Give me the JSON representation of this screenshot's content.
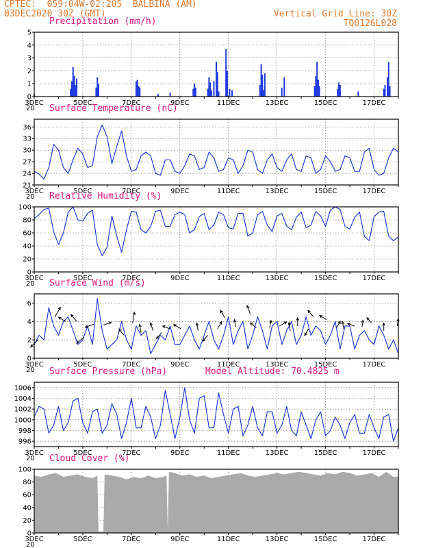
{
  "header": {
    "line1": "CPTEC:  059:04W-02:20S  BALBINA (AM)",
    "line2_left": "03DEC2020 30Z (GMT)",
    "line2_right": "Vertical Grid Line: 30Z",
    "line3_right": "TQ0126L028"
  },
  "colors": {
    "line": "#1f3adf",
    "bar": "#1f3adf",
    "cloud": "#aaaaaa",
    "title": "#e0147e",
    "header": "#e0782a",
    "grid": "#555555"
  },
  "chart_data": [
    {
      "id": "precip",
      "type": "bar",
      "title": "Precipitation (mm/h)",
      "ylim": [
        0,
        5
      ],
      "yticks": [
        0,
        1,
        2,
        3,
        4,
        5
      ],
      "x_unit": "day-of-December",
      "spikes": [
        [
          3.0,
          0.2
        ],
        [
          4.5,
          0.6
        ],
        [
          4.55,
          1.2
        ],
        [
          4.6,
          2.3
        ],
        [
          4.65,
          1.6
        ],
        [
          4.7,
          0.9
        ],
        [
          4.75,
          1.4
        ],
        [
          5.55,
          0.7
        ],
        [
          5.6,
          1.5
        ],
        [
          5.65,
          1.0
        ],
        [
          7.2,
          1.2
        ],
        [
          7.25,
          1.3
        ],
        [
          7.3,
          0.8
        ],
        [
          7.35,
          0.7
        ],
        [
          8.1,
          0.2
        ],
        [
          8.6,
          0.3
        ],
        [
          9.55,
          0.6
        ],
        [
          9.6,
          1.0
        ],
        [
          9.65,
          0.7
        ],
        [
          10.15,
          0.6
        ],
        [
          10.2,
          1.5
        ],
        [
          10.25,
          1.1
        ],
        [
          10.3,
          0.5
        ],
        [
          10.4,
          1.2
        ],
        [
          10.5,
          2.7
        ],
        [
          10.55,
          1.9
        ],
        [
          10.6,
          0.4
        ],
        [
          10.9,
          3.7
        ],
        [
          10.95,
          2.0
        ],
        [
          11.05,
          0.6
        ],
        [
          11.15,
          0.5
        ],
        [
          12.3,
          0.9
        ],
        [
          12.35,
          2.5
        ],
        [
          12.4,
          1.7
        ],
        [
          12.45,
          0.5
        ],
        [
          12.5,
          1.8
        ],
        [
          13.2,
          0.7
        ],
        [
          13.3,
          1.5
        ],
        [
          14.55,
          0.8
        ],
        [
          14.6,
          1.6
        ],
        [
          14.65,
          2.7
        ],
        [
          14.7,
          1.3
        ],
        [
          14.75,
          0.8
        ],
        [
          15.5,
          0.6
        ],
        [
          15.55,
          1.1
        ],
        [
          15.6,
          0.9
        ],
        [
          16.35,
          0.4
        ],
        [
          17.4,
          0.6
        ],
        [
          17.45,
          0.9
        ],
        [
          17.55,
          1.5
        ],
        [
          17.6,
          2.7
        ],
        [
          17.65,
          0.8
        ]
      ]
    },
    {
      "id": "temp",
      "type": "line",
      "title": "Surface Temperature (nC)",
      "ylim": [
        21,
        38
      ],
      "yticks": [
        21,
        24,
        27,
        30,
        33,
        36
      ],
      "x": [
        3.0,
        3.2,
        3.4,
        3.6,
        3.8,
        4.0,
        4.2,
        4.4,
        4.6,
        4.8,
        5.0,
        5.2,
        5.4,
        5.6,
        5.8,
        6.0,
        6.2,
        6.4,
        6.6,
        6.8,
        7.0,
        7.2,
        7.4,
        7.6,
        7.8,
        8.0,
        8.2,
        8.4,
        8.6,
        8.8,
        9.0,
        9.2,
        9.4,
        9.6,
        9.8,
        10.0,
        10.2,
        10.4,
        10.6,
        10.8,
        11.0,
        11.2,
        11.4,
        11.6,
        11.8,
        12.0,
        12.2,
        12.4,
        12.6,
        12.8,
        13.0,
        13.2,
        13.4,
        13.6,
        13.8,
        14.0,
        14.2,
        14.4,
        14.6,
        14.8,
        15.0,
        15.2,
        15.4,
        15.6,
        15.8,
        16.0,
        16.2,
        16.4,
        16.6,
        16.8,
        17.0,
        17.2,
        17.4,
        17.6,
        17.8,
        18.0
      ],
      "values": [
        24.5,
        23.8,
        22.5,
        25.5,
        31.5,
        30.0,
        25.5,
        24.0,
        27.5,
        30.5,
        29.0,
        25.5,
        26.0,
        33.5,
        36.5,
        33.5,
        26.5,
        31.0,
        35.0,
        28.5,
        24.5,
        25.0,
        28.5,
        29.5,
        28.5,
        24.0,
        23.5,
        27.5,
        27.5,
        24.5,
        24.0,
        26.0,
        29.0,
        28.5,
        25.0,
        25.5,
        29.5,
        28.0,
        24.5,
        25.0,
        28.0,
        27.5,
        24.0,
        26.0,
        30.0,
        29.5,
        25.0,
        24.0,
        27.5,
        29.0,
        25.5,
        24.5,
        27.5,
        29.0,
        25.0,
        24.5,
        28.5,
        28.0,
        24.0,
        25.0,
        28.5,
        27.0,
        24.5,
        25.0,
        28.5,
        28.0,
        24.5,
        24.5,
        29.5,
        30.5,
        25.0,
        23.5,
        24.0,
        28.0,
        30.5,
        29.5
      ]
    },
    {
      "id": "rh",
      "type": "line",
      "title": "Relative Humidity (%)",
      "ylim": [
        0,
        100
      ],
      "yticks": [
        0,
        20,
        40,
        60,
        80,
        100
      ],
      "x": [
        3.0,
        3.2,
        3.4,
        3.6,
        3.8,
        4.0,
        4.2,
        4.4,
        4.6,
        4.8,
        5.0,
        5.2,
        5.4,
        5.6,
        5.8,
        6.0,
        6.2,
        6.4,
        6.6,
        6.8,
        7.0,
        7.2,
        7.4,
        7.6,
        7.8,
        8.0,
        8.2,
        8.4,
        8.6,
        8.8,
        9.0,
        9.2,
        9.4,
        9.6,
        9.8,
        10.0,
        10.2,
        10.4,
        10.6,
        10.8,
        11.0,
        11.2,
        11.4,
        11.6,
        11.8,
        12.0,
        12.2,
        12.4,
        12.6,
        12.8,
        13.0,
        13.2,
        13.4,
        13.6,
        13.8,
        14.0,
        14.2,
        14.4,
        14.6,
        14.8,
        15.0,
        15.2,
        15.4,
        15.6,
        15.8,
        16.0,
        16.2,
        16.4,
        16.6,
        16.8,
        17.0,
        17.2,
        17.4,
        17.6,
        17.8,
        18.0
      ],
      "values": [
        82,
        88,
        96,
        98,
        62,
        42,
        60,
        92,
        100,
        80,
        78,
        90,
        95,
        42,
        25,
        38,
        86,
        55,
        30,
        65,
        93,
        92,
        65,
        60,
        70,
        93,
        95,
        70,
        70,
        88,
        92,
        88,
        60,
        65,
        85,
        90,
        65,
        72,
        92,
        88,
        68,
        66,
        90,
        90,
        55,
        60,
        88,
        93,
        72,
        62,
        86,
        90,
        70,
        65,
        84,
        92,
        68,
        72,
        93,
        86,
        70,
        95,
        100,
        96,
        70,
        66,
        84,
        92,
        55,
        48,
        85,
        92,
        93,
        55,
        48,
        54
      ]
    },
    {
      "id": "wind",
      "type": "line",
      "title": "Surface Wind (m/s)",
      "ylim": [
        0,
        7
      ],
      "yticks": [
        0,
        2,
        4,
        6
      ],
      "x": [
        3.0,
        3.2,
        3.4,
        3.6,
        3.8,
        4.0,
        4.2,
        4.4,
        4.6,
        4.8,
        5.0,
        5.2,
        5.4,
        5.6,
        5.8,
        6.0,
        6.2,
        6.4,
        6.6,
        6.8,
        7.0,
        7.2,
        7.4,
        7.6,
        7.8,
        8.0,
        8.2,
        8.4,
        8.6,
        8.8,
        9.0,
        9.2,
        9.4,
        9.6,
        9.8,
        10.0,
        10.2,
        10.4,
        10.6,
        10.8,
        11.0,
        11.2,
        11.4,
        11.6,
        11.8,
        12.0,
        12.2,
        12.4,
        12.6,
        12.8,
        13.0,
        13.2,
        13.4,
        13.6,
        13.8,
        14.0,
        14.2,
        14.4,
        14.6,
        14.8,
        15.0,
        15.2,
        15.4,
        15.6,
        15.8,
        16.0,
        16.2,
        16.4,
        16.6,
        16.8,
        17.0,
        17.2,
        17.4,
        17.6,
        17.8,
        18.0
      ],
      "values": [
        1.5,
        2.5,
        2.0,
        5.5,
        3.5,
        2.5,
        4.0,
        4.5,
        3.0,
        1.5,
        2.0,
        3.5,
        1.5,
        6.5,
        3.0,
        1.0,
        1.5,
        2.0,
        4.0,
        2.0,
        1.0,
        3.5,
        2.5,
        3.0,
        0.5,
        1.5,
        2.5,
        2.0,
        3.5,
        1.5,
        1.5,
        2.5,
        3.5,
        2.0,
        1.0,
        2.5,
        4.0,
        2.0,
        1.0,
        2.5,
        4.5,
        1.5,
        3.0,
        4.0,
        1.0,
        2.5,
        4.5,
        3.0,
        1.0,
        3.5,
        4.0,
        1.5,
        3.0,
        4.0,
        1.5,
        2.5,
        4.5,
        2.5,
        3.5,
        3.0,
        1.5,
        2.5,
        4.0,
        1.0,
        3.5,
        3.5,
        1.0,
        2.5,
        3.0,
        2.0,
        1.5,
        3.5,
        2.5,
        1.0,
        2.0,
        0.5
      ],
      "vectors": [
        {
          "x": 3.15,
          "y": 2.0,
          "dir_deg": 225,
          "speed": 2.2
        },
        {
          "x": 3.85,
          "y": 4.5,
          "dir_deg": 60,
          "speed": 2.5
        },
        {
          "x": 4.3,
          "y": 4.0,
          "dir_deg": 150,
          "speed": 1.5
        },
        {
          "x": 4.75,
          "y": 4.0,
          "dir_deg": 130,
          "speed": 1.8
        },
        {
          "x": 5.05,
          "y": 2.3,
          "dir_deg": 220,
          "speed": 2.0
        },
        {
          "x": 5.45,
          "y": 3.7,
          "dir_deg": 200,
          "speed": 1.8
        },
        {
          "x": 5.85,
          "y": 3.6,
          "dir_deg": 20,
          "speed": 1.6
        },
        {
          "x": 6.7,
          "y": 2.5,
          "dir_deg": 130,
          "speed": 1.4
        },
        {
          "x": 7.05,
          "y": 3.8,
          "dir_deg": 80,
          "speed": 2.6
        },
        {
          "x": 7.4,
          "y": 2.8,
          "dir_deg": 100,
          "speed": 1.5
        },
        {
          "x": 7.9,
          "y": 3.0,
          "dir_deg": 110,
          "speed": 1.5
        },
        {
          "x": 8.25,
          "y": 2.8,
          "dir_deg": 230,
          "speed": 1.4
        },
        {
          "x": 8.6,
          "y": 3.2,
          "dir_deg": 160,
          "speed": 1.4
        },
        {
          "x": 9.05,
          "y": 3.2,
          "dir_deg": 150,
          "speed": 1.6
        },
        {
          "x": 9.75,
          "y": 3.0,
          "dir_deg": 100,
          "speed": 1.3
        },
        {
          "x": 10.15,
          "y": 2.5,
          "dir_deg": 230,
          "speed": 1.3
        },
        {
          "x": 10.55,
          "y": 3.2,
          "dir_deg": 60,
          "speed": 1.5
        },
        {
          "x": 10.85,
          "y": 4.4,
          "dir_deg": 120,
          "speed": 1.6
        },
        {
          "x": 11.3,
          "y": 3.4,
          "dir_deg": 100,
          "speed": 1.2
        },
        {
          "x": 11.9,
          "y": 4.8,
          "dir_deg": 110,
          "speed": 1.8
        },
        {
          "x": 12.15,
          "y": 3.3,
          "dir_deg": 140,
          "speed": 1.4
        },
        {
          "x": 12.7,
          "y": 3.3,
          "dir_deg": 80,
          "speed": 1.3
        },
        {
          "x": 13.1,
          "y": 3.5,
          "dir_deg": 30,
          "speed": 1.5
        },
        {
          "x": 13.55,
          "y": 3.0,
          "dir_deg": 100,
          "speed": 1.5
        },
        {
          "x": 13.85,
          "y": 3.5,
          "dir_deg": 90,
          "speed": 1.5
        },
        {
          "x": 14.3,
          "y": 3.2,
          "dir_deg": 240,
          "speed": 1.3
        },
        {
          "x": 14.5,
          "y": 4.5,
          "dir_deg": 130,
          "speed": 1.6
        },
        {
          "x": 15.05,
          "y": 4.2,
          "dir_deg": 150,
          "speed": 1.5
        },
        {
          "x": 15.45,
          "y": 3.3,
          "dir_deg": 60,
          "speed": 1.3
        },
        {
          "x": 15.75,
          "y": 3.2,
          "dir_deg": 100,
          "speed": 1.2
        },
        {
          "x": 16.2,
          "y": 3.5,
          "dir_deg": 160,
          "speed": 1.2
        },
        {
          "x": 16.5,
          "y": 3.4,
          "dir_deg": 80,
          "speed": 1.0
        },
        {
          "x": 16.9,
          "y": 3.8,
          "dir_deg": 130,
          "speed": 1.2
        },
        {
          "x": 17.4,
          "y": 3.0,
          "dir_deg": 90,
          "speed": 1.2
        },
        {
          "x": 17.95,
          "y": 3.5,
          "dir_deg": 80,
          "speed": 1.2
        }
      ]
    },
    {
      "id": "pressure",
      "type": "line",
      "title": "Surface Pressure (hPa)",
      "annotation": "Model Altitude: 70.4825 m",
      "ylim": [
        995,
        1007
      ],
      "yticks": [
        996,
        998,
        1000,
        1002,
        1004,
        1006
      ],
      "x": [
        3.0,
        3.2,
        3.4,
        3.6,
        3.8,
        4.0,
        4.2,
        4.4,
        4.6,
        4.8,
        5.0,
        5.2,
        5.4,
        5.6,
        5.8,
        6.0,
        6.2,
        6.4,
        6.6,
        6.8,
        7.0,
        7.2,
        7.4,
        7.6,
        7.8,
        8.0,
        8.2,
        8.4,
        8.6,
        8.8,
        9.0,
        9.2,
        9.4,
        9.6,
        9.8,
        10.0,
        10.2,
        10.4,
        10.6,
        10.8,
        11.0,
        11.2,
        11.4,
        11.6,
        11.8,
        12.0,
        12.2,
        12.4,
        12.6,
        12.8,
        13.0,
        13.2,
        13.4,
        13.6,
        13.8,
        14.0,
        14.2,
        14.4,
        14.6,
        14.8,
        15.0,
        15.2,
        15.4,
        15.6,
        15.8,
        16.0,
        16.2,
        16.4,
        16.6,
        16.8,
        17.0,
        17.2,
        17.4,
        17.6,
        17.8,
        18.0
      ],
      "values": [
        1000.5,
        1002.5,
        1002.0,
        997.5,
        999.0,
        1002.5,
        998.0,
        999.5,
        1003.5,
        1004.0,
        999.5,
        997.5,
        1001.5,
        1002.0,
        997.5,
        999.0,
        1003.0,
        1001.0,
        996.5,
        999.5,
        1004.0,
        998.5,
        998.5,
        1002.5,
        1000.5,
        996.5,
        999.0,
        1005.5,
        1001.0,
        996.5,
        1000.5,
        1006.0,
        1000.0,
        997.5,
        1004.0,
        1004.5,
        998.5,
        998.5,
        1005.0,
        1001.0,
        997.5,
        1002.0,
        1002.5,
        997.0,
        999.0,
        1002.5,
        998.5,
        997.0,
        1001.5,
        1001.5,
        997.5,
        999.0,
        1002.5,
        998.0,
        997.0,
        1001.5,
        999.0,
        996.5,
        1000.0,
        1001.5,
        997.0,
        998.0,
        1000.5,
        999.0,
        996.5,
        999.5,
        1001.0,
        997.5,
        997.5,
        1001.0,
        998.5,
        996.5,
        1000.5,
        1001.0,
        996.0,
        998.5
      ]
    },
    {
      "id": "cloud",
      "type": "area",
      "title": "Cloud Cover (%)",
      "ylim": [
        0,
        100
      ],
      "yticks": [
        0,
        20,
        40,
        60,
        80,
        100
      ],
      "x": [
        3.0,
        3.3,
        3.6,
        3.9,
        4.2,
        4.5,
        4.8,
        5.1,
        5.4,
        5.6,
        5.65,
        5.85,
        5.9,
        6.2,
        6.5,
        6.8,
        7.1,
        7.4,
        7.7,
        8.0,
        8.3,
        8.45,
        8.5,
        8.55,
        8.8,
        9.1,
        9.4,
        9.7,
        10.0,
        10.3,
        10.6,
        10.9,
        11.2,
        11.5,
        11.8,
        12.1,
        12.4,
        12.7,
        13.0,
        13.3,
        13.6,
        13.9,
        14.2,
        14.5,
        14.8,
        15.1,
        15.4,
        15.7,
        16.0,
        16.3,
        16.6,
        16.9,
        17.2,
        17.5,
        17.8,
        18.0
      ],
      "values": [
        90,
        88,
        92,
        94,
        88,
        90,
        92,
        88,
        86,
        90,
        2,
        2,
        92,
        90,
        88,
        84,
        88,
        86,
        90,
        86,
        88,
        90,
        2,
        96,
        94,
        90,
        92,
        88,
        90,
        86,
        88,
        90,
        92,
        94,
        90,
        88,
        90,
        92,
        94,
        92,
        94,
        96,
        94,
        92,
        90,
        94,
        92,
        96,
        94,
        90,
        92,
        94,
        88,
        96,
        88,
        88
      ]
    }
  ],
  "x_axis": {
    "xlim": [
      3.0,
      18.0
    ],
    "major_days": [
      3,
      5,
      7,
      9,
      11,
      13,
      15,
      17
    ],
    "labels": [
      "3DEC",
      "5DEC",
      "7DEC",
      "9DEC",
      "11DEC",
      "13DEC",
      "15DEC",
      "17DEC"
    ],
    "year_stub": "20"
  }
}
